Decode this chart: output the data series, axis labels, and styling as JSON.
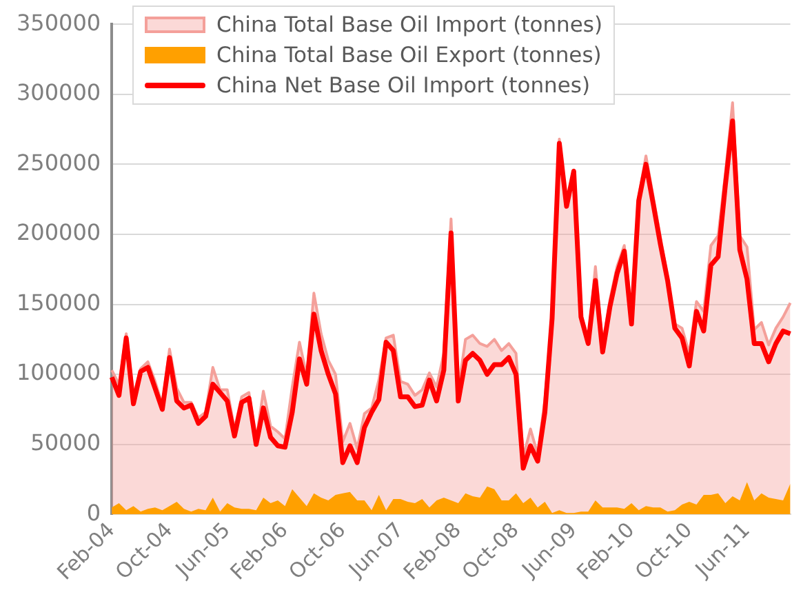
{
  "chart_data": {
    "type": "area",
    "categories": [
      "Feb-04",
      null,
      null,
      null,
      null,
      null,
      null,
      null,
      "Oct-04",
      null,
      null,
      null,
      null,
      null,
      null,
      null,
      "Jun-05",
      null,
      null,
      null,
      null,
      null,
      null,
      null,
      "Feb-06",
      null,
      null,
      null,
      null,
      null,
      null,
      null,
      "Oct-06",
      null,
      null,
      null,
      null,
      null,
      null,
      null,
      "Jun-07",
      null,
      null,
      null,
      null,
      null,
      null,
      null,
      "Feb-08",
      null,
      null,
      null,
      null,
      null,
      null,
      null,
      "Oct-08",
      null,
      null,
      null,
      null,
      null,
      null,
      null,
      "Jun-09",
      null,
      null,
      null,
      null,
      null,
      null,
      null,
      "Feb-10",
      null,
      null,
      null,
      null,
      null,
      null,
      null,
      "Oct-10",
      null,
      null,
      null,
      null,
      null,
      null,
      null,
      "Jun-11",
      null,
      null,
      null,
      null,
      null,
      null
    ],
    "series": [
      {
        "name": "China Total Base Oil Import (tonnes)",
        "color": "#f4a09a",
        "values": [
          103000,
          93000,
          129000,
          85000,
          104000,
          109000,
          95000,
          78000,
          118000,
          90000,
          80000,
          80000,
          69000,
          73000,
          105000,
          89000,
          89000,
          61000,
          84000,
          87000,
          53000,
          88000,
          63000,
          59000,
          54000,
          91000,
          123000,
          99000,
          158000,
          129000,
          110000,
          100000,
          52000,
          65000,
          47000,
          72000,
          76000,
          96000,
          126000,
          128000,
          95000,
          93000,
          85000,
          89000,
          101000,
          91000,
          115000,
          211000,
          89000,
          125000,
          128000,
          122000,
          120000,
          125000,
          117000,
          122000,
          115000,
          41000,
          61000,
          43000,
          82000,
          141000,
          268000,
          221000,
          246000,
          143000,
          124000,
          177000,
          121000,
          153000,
          177000,
          192000,
          144000,
          227000,
          256000,
          227000,
          198000,
          169000,
          136000,
          133000,
          115000,
          152000,
          145000,
          192000,
          199000,
          243000,
          294000,
          199000,
          191000,
          132000,
          137000,
          121000,
          133000,
          141000,
          151000
        ]
      },
      {
        "name": "China Total Base Oil Export (tonnes)",
        "color": "#ffa000",
        "values": [
          5000,
          8000,
          3000,
          6000,
          2000,
          4000,
          5000,
          3000,
          6000,
          9000,
          4000,
          2000,
          4000,
          3000,
          12000,
          2000,
          8000,
          5000,
          4000,
          4000,
          3000,
          12000,
          8000,
          10000,
          6000,
          18000,
          12000,
          6000,
          15000,
          12000,
          10000,
          14000,
          15000,
          16000,
          10000,
          10000,
          3000,
          14000,
          3000,
          11000,
          11000,
          9000,
          8000,
          11000,
          5000,
          10000,
          12000,
          10000,
          8000,
          15000,
          13000,
          12000,
          20000,
          18000,
          10000,
          10000,
          15000,
          8000,
          12000,
          5000,
          9000,
          1000,
          3000,
          1000,
          1000,
          2000,
          2000,
          10000,
          5000,
          5000,
          5000,
          4000,
          8000,
          3000,
          6000,
          5000,
          5000,
          2000,
          3000,
          7000,
          9000,
          7000,
          14000,
          14000,
          15000,
          8000,
          13000,
          10000,
          23000,
          10000,
          15000,
          12000,
          11000,
          10000,
          22000
        ]
      },
      {
        "name": "China Net Base Oil Import (tonnes)",
        "type": "line",
        "color": "#ff0000",
        "values": [
          98000,
          85000,
          126000,
          79000,
          102000,
          105000,
          90000,
          75000,
          112000,
          81000,
          76000,
          78000,
          65000,
          70000,
          93000,
          87000,
          81000,
          56000,
          80000,
          83000,
          50000,
          76000,
          55000,
          49000,
          48000,
          73000,
          111000,
          93000,
          143000,
          117000,
          100000,
          86000,
          37000,
          49000,
          37000,
          62000,
          73000,
          82000,
          123000,
          117000,
          84000,
          84000,
          77000,
          78000,
          96000,
          81000,
          103000,
          201000,
          81000,
          110000,
          115000,
          110000,
          100000,
          107000,
          107000,
          112000,
          100000,
          33000,
          49000,
          38000,
          73000,
          140000,
          265000,
          220000,
          245000,
          141000,
          122000,
          167000,
          116000,
          148000,
          172000,
          188000,
          136000,
          224000,
          250000,
          222000,
          193000,
          167000,
          133000,
          126000,
          106000,
          145000,
          131000,
          178000,
          184000,
          235000,
          281000,
          189000,
          168000,
          122000,
          122000,
          109000,
          122000,
          131000,
          129000
        ]
      }
    ],
    "ylim": [
      0,
      350000
    ],
    "yticks": [
      0,
      50000,
      100000,
      150000,
      200000,
      250000,
      300000,
      350000
    ],
    "grid": "y",
    "legend": "top left",
    "marker": "none"
  }
}
